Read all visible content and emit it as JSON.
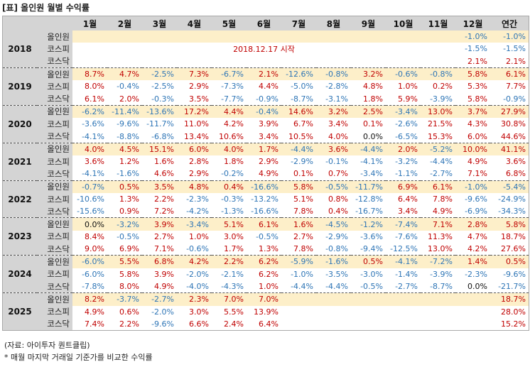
{
  "title": "[표] 올인원 월별 수익률",
  "header": {
    "corner": "",
    "labels": [
      "1월",
      "2월",
      "3월",
      "4월",
      "5월",
      "6월",
      "7월",
      "8월",
      "9월",
      "10월",
      "11월",
      "12월",
      "연간"
    ]
  },
  "colors": {
    "positive": "#c00000",
    "negative": "#2e75b6",
    "highlight_row": "#fdefc9",
    "header_bg": "#d4d4d4"
  },
  "groups": [
    {
      "year": "2018",
      "note": "2018.12.17 시작",
      "rows": [
        {
          "label": "올인원",
          "highlight": true,
          "values": [
            "",
            "",
            "",
            "",
            "",
            "",
            "",
            "",
            "",
            "",
            "",
            "-1.0%",
            "-1.0%"
          ]
        },
        {
          "label": "코스피",
          "highlight": false,
          "values": [
            "",
            "",
            "",
            "",
            "",
            "",
            "",
            "",
            "",
            "",
            "",
            "-1.5%",
            "-1.5%"
          ]
        },
        {
          "label": "코스닥",
          "highlight": false,
          "values": [
            "",
            "",
            "",
            "",
            "",
            "",
            "",
            "",
            "",
            "",
            "",
            "2.1%",
            "2.1%"
          ]
        }
      ]
    },
    {
      "year": "2019",
      "note": "",
      "rows": [
        {
          "label": "올인원",
          "highlight": true,
          "values": [
            "8.7%",
            "4.7%",
            "-2.5%",
            "7.3%",
            "-6.7%",
            "2.1%",
            "-12.6%",
            "-0.8%",
            "3.2%",
            "-0.6%",
            "-0.8%",
            "5.8%",
            "6.1%"
          ]
        },
        {
          "label": "코스피",
          "highlight": false,
          "values": [
            "8.0%",
            "-0.4%",
            "-2.5%",
            "2.9%",
            "-7.3%",
            "4.4%",
            "-5.0%",
            "-2.8%",
            "4.8%",
            "1.0%",
            "0.2%",
            "5.3%",
            "7.7%"
          ]
        },
        {
          "label": "코스닥",
          "highlight": false,
          "values": [
            "6.1%",
            "2.0%",
            "-0.3%",
            "3.5%",
            "-7.7%",
            "-0.9%",
            "-8.7%",
            "-3.1%",
            "1.8%",
            "5.9%",
            "-3.9%",
            "5.8%",
            "-0.9%"
          ]
        }
      ]
    },
    {
      "year": "2020",
      "note": "",
      "rows": [
        {
          "label": "올인원",
          "highlight": true,
          "values": [
            "-6.2%",
            "-11.4%",
            "-13.6%",
            "17.2%",
            "4.4%",
            "-0.4%",
            "14.6%",
            "3.2%",
            "2.5%",
            "-3.4%",
            "13.0%",
            "3.7%",
            "27.9%"
          ]
        },
        {
          "label": "코스피",
          "highlight": false,
          "values": [
            "-3.6%",
            "-9.6%",
            "-11.7%",
            "11.0%",
            "4.2%",
            "3.9%",
            "6.7%",
            "3.4%",
            "0.1%",
            "-2.6%",
            "21.5%",
            "4.3%",
            "30.8%"
          ]
        },
        {
          "label": "코스닥",
          "highlight": false,
          "values": [
            "-4.1%",
            "-8.8%",
            "-6.8%",
            "13.4%",
            "10.6%",
            "3.4%",
            "10.5%",
            "4.0%",
            "0.0%",
            "-6.5%",
            "15.3%",
            "6.0%",
            "44.6%"
          ]
        }
      ]
    },
    {
      "year": "2021",
      "note": "",
      "rows": [
        {
          "label": "올인원",
          "highlight": true,
          "values": [
            "4.0%",
            "4.5%",
            "15.1%",
            "6.0%",
            "4.0%",
            "1.7%",
            "-4.4%",
            "3.6%",
            "-4.4%",
            "2.0%",
            "-5.2%",
            "10.0%",
            "41.1%"
          ]
        },
        {
          "label": "코스피",
          "highlight": false,
          "values": [
            "3.6%",
            "1.2%",
            "1.6%",
            "2.8%",
            "1.8%",
            "2.9%",
            "-2.9%",
            "-0.1%",
            "-4.1%",
            "-3.2%",
            "-4.4%",
            "4.9%",
            "3.6%"
          ]
        },
        {
          "label": "코스닥",
          "highlight": false,
          "values": [
            "-4.1%",
            "-1.6%",
            "4.6%",
            "2.9%",
            "-0.2%",
            "4.9%",
            "0.1%",
            "0.7%",
            "-3.4%",
            "-1.1%",
            "-2.7%",
            "7.1%",
            "6.8%"
          ]
        }
      ]
    },
    {
      "year": "2022",
      "note": "",
      "rows": [
        {
          "label": "올인원",
          "highlight": true,
          "values": [
            "-0.7%",
            "0.5%",
            "3.5%",
            "4.8%",
            "0.4%",
            "-16.6%",
            "5.8%",
            "-0.5%",
            "-11.7%",
            "6.9%",
            "6.1%",
            "-1.0%",
            "-5.4%"
          ]
        },
        {
          "label": "코스피",
          "highlight": false,
          "values": [
            "-10.6%",
            "1.3%",
            "2.2%",
            "-2.3%",
            "-0.3%",
            "-13.2%",
            "5.1%",
            "0.8%",
            "-12.8%",
            "6.4%",
            "7.8%",
            "-9.6%",
            "-24.9%"
          ]
        },
        {
          "label": "코스닥",
          "highlight": false,
          "values": [
            "-15.6%",
            "0.9%",
            "7.2%",
            "-4.2%",
            "-1.3%",
            "-16.6%",
            "7.8%",
            "0.4%",
            "-16.7%",
            "3.4%",
            "4.9%",
            "-6.9%",
            "-34.3%"
          ]
        }
      ]
    },
    {
      "year": "2023",
      "note": "",
      "rows": [
        {
          "label": "올인원",
          "highlight": true,
          "values": [
            "0.0%",
            "-3.2%",
            "3.9%",
            "-3.4%",
            "5.1%",
            "6.1%",
            "1.6%",
            "-4.5%",
            "-1.2%",
            "-7.4%",
            "7.1%",
            "2.8%",
            "5.8%"
          ]
        },
        {
          "label": "코스피",
          "highlight": false,
          "values": [
            "8.4%",
            "-0.5%",
            "2.7%",
            "1.0%",
            "3.0%",
            "-0.5%",
            "2.7%",
            "-2.9%",
            "-3.6%",
            "-7.6%",
            "11.3%",
            "4.7%",
            "18.7%"
          ]
        },
        {
          "label": "코스닥",
          "highlight": false,
          "values": [
            "9.0%",
            "6.9%",
            "7.1%",
            "-0.6%",
            "1.7%",
            "1.3%",
            "7.8%",
            "-0.8%",
            "-9.4%",
            "-12.5%",
            "13.0%",
            "4.2%",
            "27.6%"
          ]
        }
      ]
    },
    {
      "year": "2024",
      "note": "",
      "rows": [
        {
          "label": "올인원",
          "highlight": true,
          "values": [
            "-6.0%",
            "5.5%",
            "6.8%",
            "4.2%",
            "2.2%",
            "6.2%",
            "-5.9%",
            "-1.6%",
            "0.5%",
            "-4.1%",
            "-7.2%",
            "1.4%",
            "0.5%"
          ]
        },
        {
          "label": "코스피",
          "highlight": false,
          "values": [
            "-6.0%",
            "5.8%",
            "3.9%",
            "-2.0%",
            "-2.1%",
            "6.2%",
            "-1.0%",
            "-3.5%",
            "-3.0%",
            "-1.4%",
            "-3.9%",
            "-2.3%",
            "-9.6%"
          ]
        },
        {
          "label": "코스닥",
          "highlight": false,
          "values": [
            "-7.8%",
            "8.0%",
            "4.9%",
            "-4.0%",
            "-4.3%",
            "1.0%",
            "-4.4%",
            "-4.4%",
            "-0.5%",
            "-2.7%",
            "-8.7%",
            "0.0%",
            "-21.7%"
          ]
        }
      ]
    },
    {
      "year": "2025",
      "note": "",
      "rows": [
        {
          "label": "올인원",
          "highlight": true,
          "values": [
            "8.2%",
            "-3.7%",
            "-2.7%",
            "2.3%",
            "7.0%",
            "7.0%",
            "",
            "",
            "",
            "",
            "",
            "",
            "18.7%"
          ]
        },
        {
          "label": "코스피",
          "highlight": false,
          "values": [
            "4.9%",
            "0.6%",
            "-2.0%",
            "3.0%",
            "5.5%",
            "13.9%",
            "",
            "",
            "",
            "",
            "",
            "",
            "28.0%"
          ]
        },
        {
          "label": "코스닥",
          "highlight": false,
          "values": [
            "7.4%",
            "2.2%",
            "-9.6%",
            "6.6%",
            "2.4%",
            "6.4%",
            "",
            "",
            "",
            "",
            "",
            "",
            "15.2%"
          ]
        }
      ]
    }
  ],
  "footnotes": [
    "(자료: 아이투자 퀀트클립)",
    "* 매월 마지막 거래일 기준가를 비교한 수익률"
  ]
}
